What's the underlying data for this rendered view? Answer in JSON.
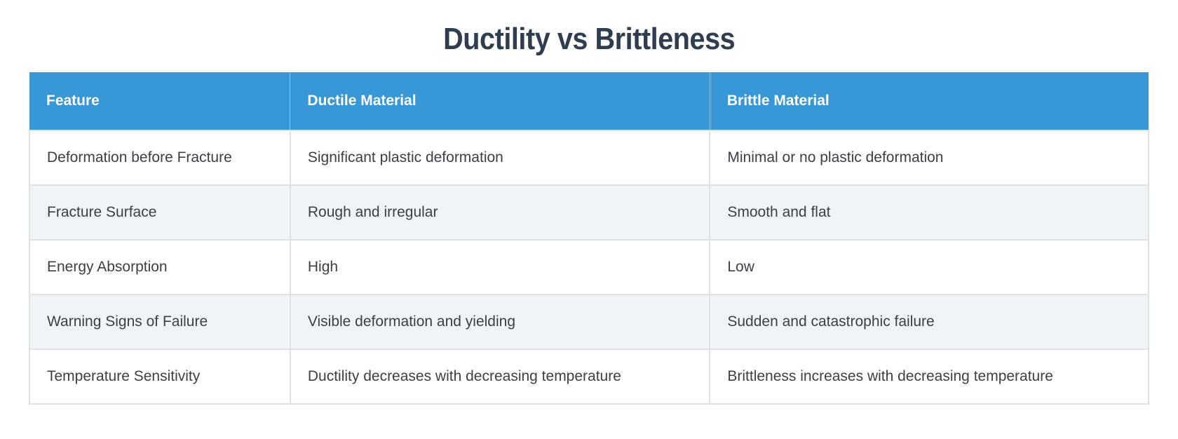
{
  "title": {
    "text": "Ductility vs Brittleness"
  },
  "chart_data": {
    "type": "table",
    "title": "Ductility vs Brittleness",
    "columns": [
      "Feature",
      "Ductile Material",
      "Brittle Material"
    ],
    "rows": [
      [
        "Deformation before Fracture",
        "Significant plastic deformation",
        "Minimal or no plastic deformation"
      ],
      [
        "Fracture Surface",
        "Rough and irregular",
        "Smooth and flat"
      ],
      [
        "Energy Absorption",
        "High",
        "Low"
      ],
      [
        "Warning Signs of Failure",
        "Visible deformation and yielding",
        "Sudden and catastrophic failure"
      ],
      [
        "Temperature Sensitivity",
        "Ductility decreases with decreasing temperature",
        "Brittleness increases with decreasing temperature"
      ]
    ]
  },
  "style": {
    "header_bg": "#3897d6",
    "header_text": "#ffffff",
    "row_bg": "#ffffff",
    "row_alt_bg": "#f0f4f9",
    "border": "#e0e2e5",
    "body_text": "#3c4045",
    "title_color": "#2f3d50",
    "page_bg": "#ffffff"
  }
}
